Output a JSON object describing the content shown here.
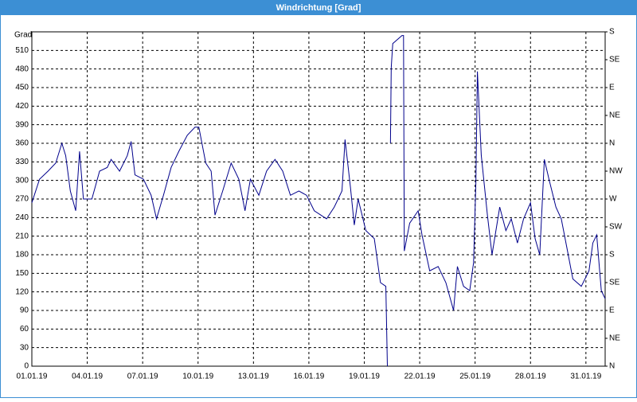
{
  "window_title": "Windrichtung [Grad]",
  "chart_data": {
    "type": "line",
    "ylabel": "Grad",
    "grid": true,
    "x": [
      "2019-01-01T00:00",
      "2019-01-01T10:00",
      "2019-01-01T21:00",
      "2019-01-02T07:00",
      "2019-01-02T15:00",
      "2019-01-02T20:00",
      "2019-01-03T02:00",
      "2019-01-03T09:00",
      "2019-01-03T14:00",
      "2019-01-03T19:00",
      "2019-01-04T06:00",
      "2019-01-04T16:00",
      "2019-01-05T02:00",
      "2019-01-05T07:00",
      "2019-01-05T18:00",
      "2019-01-06T04:00",
      "2019-01-06T09:00",
      "2019-01-06T14:00",
      "2019-01-07T01:00",
      "2019-01-07T11:00",
      "2019-01-07T18:00",
      "2019-01-08T03:00",
      "2019-01-08T13:00",
      "2019-01-08T23:00",
      "2019-01-09T10:00",
      "2019-01-09T20:00",
      "2019-01-10T01:00",
      "2019-01-10T10:00",
      "2019-01-10T17:00",
      "2019-01-10T22:00",
      "2019-01-11T08:00",
      "2019-01-11T19:00",
      "2019-01-12T05:00",
      "2019-01-12T13:00",
      "2019-01-12T20:00",
      "2019-01-13T07:00",
      "2019-01-13T17:00",
      "2019-01-14T04:00",
      "2019-01-14T14:00",
      "2019-01-15T00:00",
      "2019-01-15T11:00",
      "2019-01-15T21:00",
      "2019-01-16T07:00",
      "2019-01-16T23:00",
      "2019-01-17T09:00",
      "2019-01-17T19:00",
      "2019-01-17T23:00",
      "2019-01-18T06:00",
      "2019-01-18T11:00",
      "2019-01-18T16:00",
      "2019-01-19T02:00",
      "2019-01-19T13:00",
      "2019-01-19T21:00",
      "2019-01-20T04:00",
      "2019-01-20T06:00",
      "2019-01-20T08:00",
      "2019-01-20T10:00",
      "2019-01-20T11:00",
      "2019-01-20T13:00",
      "2019-01-21T01:00",
      "2019-01-21T03:00",
      "2019-01-21T04:00",
      "2019-01-21T11:00",
      "2019-01-21T22:00",
      "2019-01-22T03:00",
      "2019-01-22T13:00",
      "2019-01-23T00:00",
      "2019-01-23T10:00",
      "2019-01-23T20:00",
      "2019-01-24T01:00",
      "2019-01-24T09:00",
      "2019-01-24T17:00",
      "2019-01-24T22:00",
      "2019-01-25T01:00",
      "2019-01-25T03:00",
      "2019-01-25T08:00",
      "2019-01-25T16:00",
      "2019-01-25T22:00",
      "2019-01-26T08:00",
      "2019-01-26T16:00",
      "2019-01-26T23:00",
      "2019-01-27T07:00",
      "2019-01-27T15:00",
      "2019-01-28T00:00",
      "2019-01-28T06:00",
      "2019-01-28T12:00",
      "2019-01-28T18:00",
      "2019-01-29T00:00",
      "2019-01-29T09:00",
      "2019-01-29T16:00",
      "2019-01-29T23:00",
      "2019-01-30T07:00",
      "2019-01-30T18:00",
      "2019-01-31T04:00",
      "2019-01-31T09:00",
      "2019-01-31T14:00",
      "2019-01-31T20:00",
      "2019-02-01T01:00"
    ],
    "series": [
      {
        "color": "#00008b",
        "values": [
          264,
          302,
          315,
          328,
          360,
          340,
          283,
          251,
          347,
          270,
          270,
          315,
          321,
          334,
          315,
          340,
          363,
          309,
          302,
          276,
          238,
          276,
          321,
          347,
          373,
          386,
          386,
          328,
          315,
          244,
          283,
          328,
          302,
          251,
          302,
          276,
          315,
          334,
          315,
          276,
          283,
          276,
          251,
          238,
          257,
          283,
          366,
          289,
          228,
          270,
          219,
          206,
          135,
          129,
          0,
          null,
          360,
          482,
          521,
          534,
          534,
          186,
          231,
          251,
          212,
          154,
          161,
          135,
          90,
          161,
          129,
          122,
          167,
          296,
          476,
          341,
          244,
          180,
          257,
          219,
          238,
          199,
          238,
          264,
          206,
          180,
          334,
          302,
          257,
          238,
          193,
          141,
          129,
          154,
          199,
          212,
          122,
          109
        ]
      }
    ],
    "xlim": [
      "2019-01-01T00:00",
      "2019-02-01T01:00"
    ],
    "xticks": [
      {
        "value": "2019-01-01T00:00",
        "label": "01.01.19"
      },
      {
        "value": "2019-01-04T00:00",
        "label": "04.01.19"
      },
      {
        "value": "2019-01-07T00:00",
        "label": "07.01.19"
      },
      {
        "value": "2019-01-10T00:00",
        "label": "10.01.19"
      },
      {
        "value": "2019-01-13T00:00",
        "label": "13.01.19"
      },
      {
        "value": "2019-01-16T00:00",
        "label": "16.01.19"
      },
      {
        "value": "2019-01-19T00:00",
        "label": "19.01.19"
      },
      {
        "value": "2019-01-22T00:00",
        "label": "22.01.19"
      },
      {
        "value": "2019-01-25T00:00",
        "label": "25.01.19"
      },
      {
        "value": "2019-01-28T00:00",
        "label": "28.01.19"
      },
      {
        "value": "2019-01-31T00:00",
        "label": "31.01.19"
      }
    ],
    "ylim": [
      0,
      540
    ],
    "yticks": [
      0,
      30,
      60,
      90,
      120,
      150,
      180,
      210,
      240,
      270,
      300,
      330,
      360,
      390,
      420,
      450,
      480,
      510
    ],
    "y2lim": [
      0,
      540
    ],
    "y2ticks": [
      {
        "value": 0,
        "label": "N"
      },
      {
        "value": 45,
        "label": "NE"
      },
      {
        "value": 90,
        "label": "E"
      },
      {
        "value": 135,
        "label": "SE"
      },
      {
        "value": 180,
        "label": "S"
      },
      {
        "value": 225,
        "label": "SW"
      },
      {
        "value": 270,
        "label": "W"
      },
      {
        "value": 315,
        "label": "NW"
      },
      {
        "value": 360,
        "label": "N"
      },
      {
        "value": 405,
        "label": "NE"
      },
      {
        "value": 450,
        "label": "E"
      },
      {
        "value": 495,
        "label": "SE"
      },
      {
        "value": 540,
        "label": "S"
      }
    ]
  }
}
